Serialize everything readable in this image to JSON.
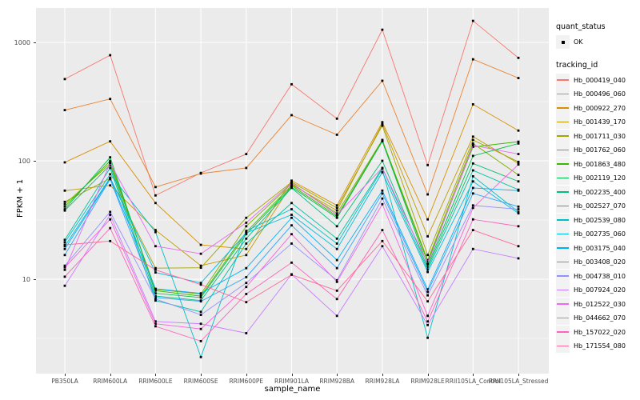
{
  "axes": {
    "y_label": "FPKM + 1",
    "x_label": "sample_name",
    "y_tick_labels": [
      "1000",
      "100",
      "10"
    ]
  },
  "legend": {
    "quant_status_title": "quant_status",
    "quant_status_items": [
      {
        "label": "OK"
      }
    ],
    "tracking_id_title": "tracking_id"
  },
  "colors": {
    "panel_background": "#EBEBEB",
    "gridline": "#FFFFFF",
    "point": "#000000",
    "tick_text": "#4D4D4D",
    "axis_tick": "#333333",
    "legend_key_background": "#F2F2F2"
  },
  "chart_data": {
    "type": "line",
    "title": "",
    "xlabel": "sample_name",
    "ylabel": "FPKM + 1",
    "y_scale": "log10",
    "ylim": [
      1.6,
      1950
    ],
    "y_major_breaks": [
      1000,
      100,
      10
    ],
    "y_minor_breaks": [
      316.2,
      31.62,
      3.162
    ],
    "grid": true,
    "legend_position": "right",
    "point_shape": "filled-square-black",
    "categories": [
      "PB350LA",
      "RRIM600LA",
      "RRIM600LE",
      "RRIM600SE",
      "RRIM600PE",
      "RRIM901LA",
      "RRIM928BA",
      "RRIM928LA",
      "RRIM928LE",
      "RRII105LA_Control",
      "RRII105LA_Stressed"
    ],
    "series": [
      {
        "name": "Hb_000419_040",
        "color": "#F8766D",
        "values": [
          490,
          780,
          51,
          79,
          114,
          443,
          227,
          1280,
          92,
          1520,
          740
        ]
      },
      {
        "name": "Hb_000496_060",
        "color": "#EA8331",
        "values": [
          268,
          333,
          60,
          78,
          87,
          243,
          166,
          474,
          52,
          720,
          500
        ]
      },
      {
        "name": "Hb_000922_270",
        "color": "#D89000",
        "values": [
          97,
          146,
          44,
          19.5,
          18,
          68,
          42,
          212,
          32,
          300,
          180
        ]
      },
      {
        "name": "Hb_001439_170",
        "color": "#C09B00",
        "values": [
          56,
          62,
          26,
          13,
          16,
          63,
          38,
          205,
          23,
          160,
          95
        ]
      },
      {
        "name": "Hb_001711_030",
        "color": "#A3A500",
        "values": [
          45,
          71,
          12.4,
          12.5,
          33,
          66,
          40,
          198,
          16,
          150,
          98
        ]
      },
      {
        "name": "Hb_001762_060",
        "color": "#7CAE00",
        "values": [
          43,
          95,
          8.2,
          7.5,
          28,
          64,
          36,
          150,
          14.5,
          140,
          76
        ]
      },
      {
        "name": "Hb_001863_480",
        "color": "#39B600",
        "values": [
          41,
          100,
          8.0,
          7.2,
          25,
          62,
          34,
          148,
          14,
          131,
          145
        ]
      },
      {
        "name": "Hb_002119_120",
        "color": "#00BB4E",
        "values": [
          39,
          107,
          7.6,
          7.0,
          24,
          60,
          33,
          146,
          13,
          110,
          140
        ]
      },
      {
        "name": "Hb_002235_400",
        "color": "#00BF7D",
        "values": [
          38,
          92,
          7.2,
          6.6,
          22,
          59,
          28,
          100,
          12.5,
          95,
          67
        ]
      },
      {
        "name": "Hb_002527_070",
        "color": "#00C1A3",
        "values": [
          21.5,
          87,
          6.6,
          5.3,
          20,
          44,
          22,
          87,
          12,
          83,
          57
        ]
      },
      {
        "name": "Hb_002539_080",
        "color": "#00BFC4",
        "values": [
          20.5,
          77,
          25,
          2.2,
          25.6,
          39,
          20,
          85,
          3.2,
          74,
          37
        ]
      },
      {
        "name": "Hb_002735_060",
        "color": "#00BAE0",
        "values": [
          19,
          72,
          11.4,
          9.3,
          24.6,
          35,
          18,
          80,
          11.5,
          67,
          36
        ]
      },
      {
        "name": "Hb_003175_040",
        "color": "#00B0F6",
        "values": [
          18,
          71,
          8.3,
          7.6,
          12.4,
          33,
          14.5,
          56,
          8.2,
          59,
          56
        ]
      },
      {
        "name": "Hb_003408_020",
        "color": "#35A2FF",
        "values": [
          16,
          70,
          7.0,
          6.5,
          10.4,
          28.5,
          12.4,
          53,
          7.8,
          53,
          41
        ]
      },
      {
        "name": "Hb_004738_010",
        "color": "#9590FF",
        "values": [
          13,
          37,
          6.8,
          5.0,
          9.3,
          20,
          9.8,
          48,
          7.3,
          42,
          39
        ]
      },
      {
        "name": "Hb_007924_020",
        "color": "#C77CFF",
        "values": [
          8.8,
          35,
          4.4,
          4.2,
          3.5,
          11,
          4.9,
          19,
          4.1,
          18,
          15
        ]
      },
      {
        "name": "Hb_012522_030",
        "color": "#E76BF3",
        "values": [
          12,
          96,
          19,
          16.4,
          30,
          65,
          35,
          87,
          13.5,
          135,
          114
        ]
      },
      {
        "name": "Hb_044662_070",
        "color": "#FA62DB",
        "values": [
          12.6,
          32,
          4.2,
          3.8,
          8.6,
          24,
          9.5,
          43,
          4.9,
          40,
          93
        ]
      },
      {
        "name": "Hb_157022_020",
        "color": "#FF62BC",
        "values": [
          10.5,
          27,
          4.0,
          3.0,
          7.5,
          13.8,
          6.8,
          26,
          4.4,
          32,
          28
        ]
      },
      {
        "name": "Hb_171554_080",
        "color": "#FF6A98",
        "values": [
          19.5,
          21,
          12,
          9.0,
          6.4,
          10.9,
          8.0,
          21,
          6.5,
          26,
          19
        ]
      }
    ]
  }
}
